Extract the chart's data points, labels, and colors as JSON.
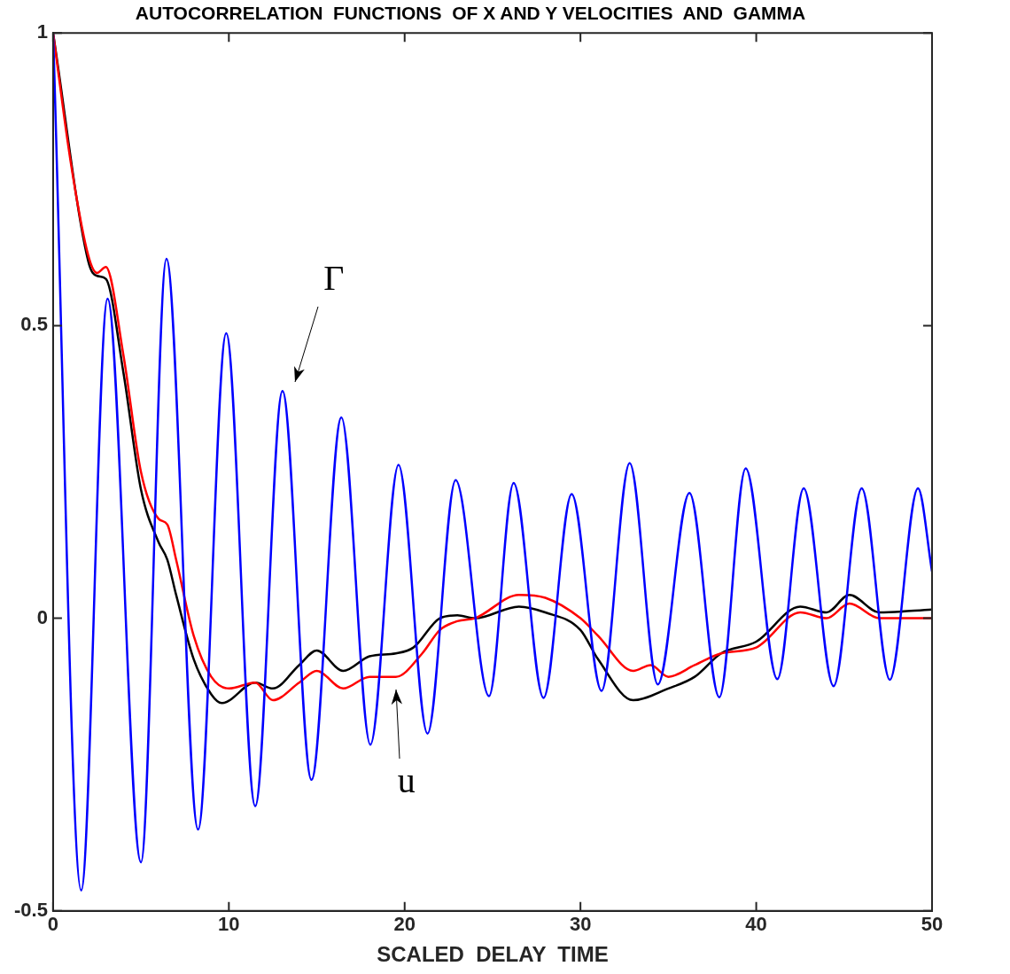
{
  "chart_data": {
    "type": "line",
    "title": "AUTOCORRELATION  FUNCTIONS  OF X AND Y VELOCITIES  AND  GAMMA",
    "xlabel": "SCALED  DELAY  TIME",
    "xlim": [
      0,
      50
    ],
    "ylim": [
      -0.5,
      1
    ],
    "xticks": [
      0,
      10,
      20,
      30,
      40,
      50
    ],
    "yticks": [
      -0.5,
      0,
      0.5,
      1
    ],
    "grid": false,
    "legend": false,
    "marker": "none",
    "line_style": "solid",
    "annotations": [
      {
        "text": "Γ",
        "x": 13.05,
        "y": 0.388
      },
      {
        "text": "u",
        "x": 19.5,
        "y": -0.1
      }
    ],
    "series": [
      {
        "color": "#0000ff",
        "x": [
          0,
          1.6,
          3.1,
          5.0,
          6.45,
          8.25,
          9.85,
          11.5,
          13.05,
          14.7,
          16.4,
          18.05,
          19.65,
          21.3,
          22.9,
          24.8,
          26.2,
          27.9,
          29.5,
          31.2,
          32.8,
          34.4,
          36.2,
          37.9,
          39.4,
          41.2,
          42.7,
          44.4,
          46.0,
          47.6,
          49.2,
          50
        ],
        "values": [
          1,
          -0.465,
          0.546,
          -0.417,
          0.614,
          -0.361,
          0.487,
          -0.321,
          0.388,
          -0.276,
          0.343,
          -0.216,
          0.262,
          -0.197,
          0.236,
          -0.133,
          0.231,
          -0.136,
          0.212,
          -0.124,
          0.265,
          -0.113,
          0.214,
          -0.135,
          0.256,
          -0.104,
          0.222,
          -0.116,
          0.222,
          -0.105,
          0.222,
          0.08
        ]
      },
      {
        "color": "#ff0000",
        "x": [
          0,
          1,
          2,
          2.5,
          3,
          4,
          5,
          6,
          6.5,
          7,
          8,
          9,
          10,
          11.5,
          12.5,
          14,
          15,
          16.5,
          18,
          19.5,
          21,
          22,
          23,
          24,
          26.5,
          28,
          30,
          31,
          33,
          34,
          35,
          36.5,
          38,
          40,
          42.5,
          44,
          45.3,
          47,
          50
        ],
        "values": [
          1,
          0.78,
          0.62,
          0.59,
          0.6,
          0.45,
          0.25,
          0.17,
          0.16,
          0.1,
          -0.03,
          -0.1,
          -0.12,
          -0.11,
          -0.14,
          -0.11,
          -0.09,
          -0.12,
          -0.1,
          -0.1,
          -0.06,
          -0.02,
          -0.005,
          0,
          0.04,
          0.035,
          0,
          -0.03,
          -0.09,
          -0.08,
          -0.1,
          -0.08,
          -0.06,
          -0.05,
          0.01,
          0,
          0.025,
          0,
          0
        ]
      },
      {
        "color": "#000000",
        "x": [
          0,
          2,
          2.5,
          3,
          4,
          5,
          6,
          6.5,
          7,
          8,
          9,
          9.6,
          11.5,
          12.5,
          14,
          15,
          16.5,
          18,
          19.5,
          20.5,
          22,
          23,
          24,
          26.5,
          28,
          30,
          31,
          33,
          35,
          36.5,
          38,
          40,
          42.5,
          44,
          45.3,
          47,
          50
        ],
        "values": [
          1,
          0.61,
          0.585,
          0.58,
          0.42,
          0.22,
          0.13,
          0.1,
          0.04,
          -0.07,
          -0.13,
          -0.145,
          -0.11,
          -0.12,
          -0.08,
          -0.055,
          -0.09,
          -0.065,
          -0.06,
          -0.05,
          0,
          0.005,
          0,
          0.02,
          0.01,
          -0.02,
          -0.07,
          -0.14,
          -0.12,
          -0.1,
          -0.06,
          -0.04,
          0.02,
          0.01,
          0.04,
          0.01,
          0.015
        ]
      }
    ]
  }
}
